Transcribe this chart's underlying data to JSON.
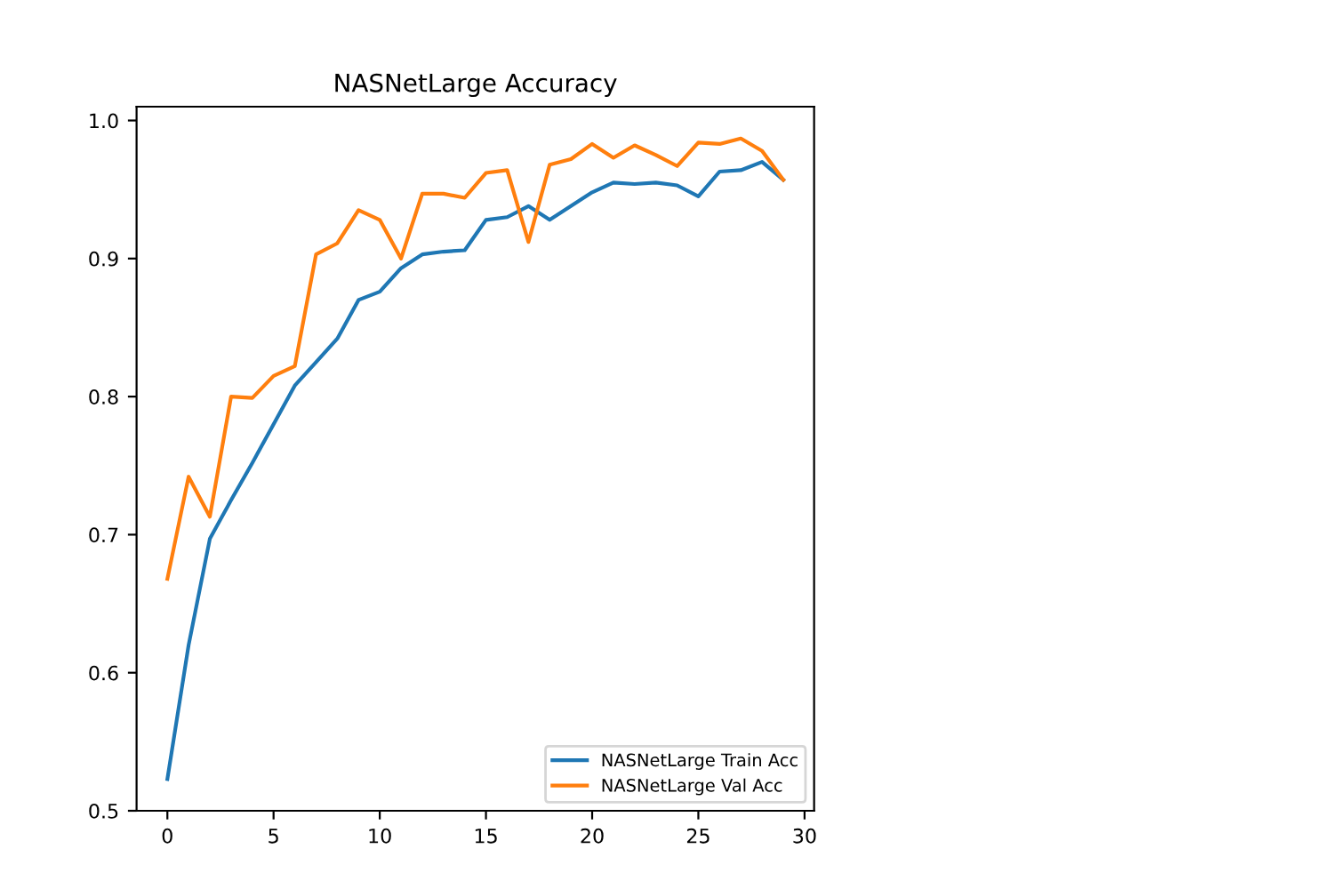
{
  "chart_data": {
    "type": "line",
    "title": "NASNetLarge Accuracy",
    "x": [
      0,
      1,
      2,
      3,
      4,
      5,
      6,
      7,
      8,
      9,
      10,
      11,
      12,
      13,
      14,
      15,
      16,
      17,
      18,
      19,
      20,
      21,
      22,
      23,
      24,
      25,
      26,
      27,
      28,
      29
    ],
    "series": [
      {
        "name": "NASNetLarge Train Acc",
        "color": "#1f77b4",
        "values": [
          0.523,
          0.62,
          0.697,
          0.725,
          0.752,
          0.78,
          0.808,
          0.825,
          0.842,
          0.87,
          0.876,
          0.893,
          0.903,
          0.905,
          0.906,
          0.928,
          0.93,
          0.938,
          0.928,
          0.938,
          0.948,
          0.955,
          0.954,
          0.955,
          0.953,
          0.945,
          0.963,
          0.964,
          0.97,
          0.957
        ]
      },
      {
        "name": "NASNetLarge Val Acc",
        "color": "#ff7f0e",
        "values": [
          0.668,
          0.742,
          0.713,
          0.8,
          0.799,
          0.815,
          0.822,
          0.903,
          0.911,
          0.935,
          0.928,
          0.9,
          0.947,
          0.947,
          0.944,
          0.962,
          0.964,
          0.912,
          0.968,
          0.972,
          0.983,
          0.973,
          0.982,
          0.975,
          0.967,
          0.984,
          0.983,
          0.987,
          0.978,
          0.957
        ]
      }
    ],
    "xlim": [
      -1.45,
      30.45
    ],
    "ylim": [
      0.5,
      1.01
    ],
    "xticks": [
      0,
      5,
      10,
      15,
      20,
      25,
      30
    ],
    "yticks": [
      0.5,
      0.6,
      0.7,
      0.8,
      0.9,
      {
        "value": 1.0,
        "label": "1.0"
      }
    ],
    "legend": "bottom right",
    "grid": false
  }
}
